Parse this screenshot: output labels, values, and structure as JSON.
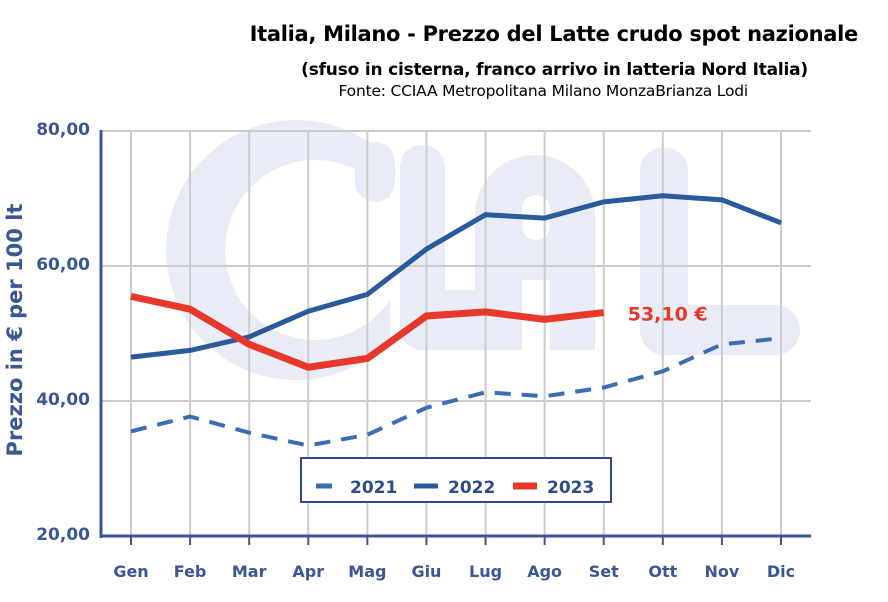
{
  "chart_data": {
    "type": "line",
    "title": "Italia, Milano - Prezzo del Latte crudo spot nazionale",
    "subtitle": "(sfuso in cisterna, franco arrivo in latteria Nord Italia)",
    "source": "Fonte: CCIAA Metropolitana Milano MonzaBrianza Lodi",
    "xlabel": "",
    "ylabel": "Prezzo in € per 100 lt",
    "ylim": [
      20,
      80
    ],
    "yticks": [
      20,
      40,
      60,
      80
    ],
    "ytick_labels": [
      "20,00",
      "40,00",
      "60,00",
      "80,00"
    ],
    "grid": true,
    "legend_position": "bottom-center",
    "watermark": "CLAL",
    "categories": [
      "Gen",
      "Feb",
      "Mar",
      "Apr",
      "Mag",
      "Giu",
      "Lug",
      "Ago",
      "Set",
      "Ott",
      "Nov",
      "Dic"
    ],
    "series": [
      {
        "name": "2021",
        "style": "dashed",
        "color": "#3a6db5",
        "values": [
          35.5,
          37.7,
          35.3,
          33.4,
          35.0,
          39.0,
          41.3,
          40.7,
          42.0,
          44.4,
          48.4,
          49.3
        ]
      },
      {
        "name": "2022",
        "style": "solid",
        "color": "#2a5a9e",
        "values": [
          46.5,
          47.5,
          49.5,
          53.3,
          55.8,
          62.5,
          67.6,
          67.1,
          69.5,
          70.4,
          69.8,
          66.4
        ]
      },
      {
        "name": "2023",
        "style": "solid-thick",
        "color": "#e8382a",
        "values": [
          55.5,
          53.6,
          48.4,
          45.0,
          46.3,
          52.6,
          53.2,
          52.1,
          53.1,
          null,
          null,
          null
        ]
      }
    ],
    "annotations": [
      {
        "text": "53,10 €",
        "series": "2023",
        "category": "Set"
      }
    ]
  },
  "colors": {
    "axis": "#3b5694",
    "grid": "#cccccc",
    "watermark": "#e9ecf7"
  }
}
